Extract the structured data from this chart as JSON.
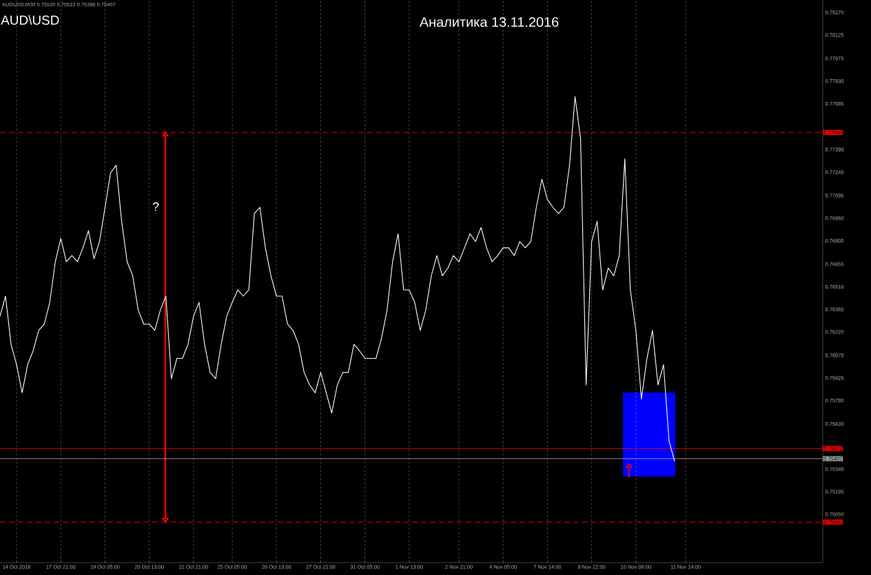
{
  "chart_data": {
    "type": "line",
    "title": "Аналитика 13.11.2016",
    "subtitle": "AUD\\USD",
    "annotations": [
      "AUDUSD,M30  0.75520 0.75522 0.75396 0.75407",
      "?"
    ],
    "categories": [
      null,
      null,
      null,
      "14 Oct 2016",
      null,
      null,
      null,
      null,
      null,
      null,
      null,
      "17 Oct 21:00",
      null,
      null,
      null,
      null,
      null,
      null,
      null,
      "19 Oct 05:00",
      null,
      null,
      null,
      null,
      null,
      null,
      null,
      "20 Oct 13:00",
      null,
      null,
      null,
      null,
      null,
      null,
      null,
      "21 Oct 21:00",
      null,
      null,
      null,
      null,
      null,
      null,
      "25 Oct 05:00",
      null,
      null,
      null,
      null,
      null,
      null,
      null,
      "26 Oct 13:00",
      null,
      null,
      null,
      null,
      null,
      null,
      null,
      "27 Oct 21:00",
      null,
      null,
      null,
      null,
      null,
      null,
      null,
      "31 Oct 05:00",
      null,
      null,
      null,
      null,
      null,
      null,
      null,
      "1 Nov 13:00",
      null,
      null,
      null,
      null,
      null,
      null,
      null,
      null,
      "2 Nov 21:00",
      null,
      null,
      null,
      null,
      null,
      null,
      null,
      "4 Nov 05:00",
      null,
      null,
      null,
      null,
      null,
      null,
      null,
      "7 Nov 14:00",
      null,
      null,
      null,
      null,
      null,
      null,
      null,
      "8 Nov 22:00",
      null,
      null,
      null,
      null,
      null,
      null,
      null,
      "10 Nov 06:00",
      null,
      null,
      null,
      null,
      null,
      null,
      null,
      null,
      "11 Nov 14:00"
    ],
    "series": [
      {
        "color": "#ffffff",
        "values": [
          0.7632,
          0.7645,
          0.7614,
          0.7601,
          0.7583,
          0.7601,
          0.761,
          0.7623,
          0.7627,
          0.7641,
          0.7667,
          0.7682,
          0.7667,
          0.7671,
          0.7667,
          0.7676,
          0.7687,
          0.7669,
          0.768,
          0.7702,
          0.7724,
          0.7729,
          0.7693,
          0.7667,
          0.7658,
          0.7636,
          0.7627,
          0.7627,
          0.7623,
          0.7636,
          0.7645,
          0.7592,
          0.7605,
          0.7605,
          0.7614,
          0.7632,
          0.7641,
          0.7614,
          0.7596,
          0.7592,
          0.7614,
          0.7632,
          0.7641,
          0.7649,
          0.7645,
          0.7649,
          0.7698,
          0.7702,
          0.7676,
          0.7658,
          0.7645,
          0.7645,
          0.7627,
          0.7623,
          0.7614,
          0.7596,
          0.7588,
          0.7583,
          0.7596,
          0.7583,
          0.757,
          0.7588,
          0.7596,
          0.7596,
          0.7614,
          0.761,
          0.7605,
          0.7605,
          0.7605,
          0.7618,
          0.7636,
          0.7667,
          0.7685,
          0.7649,
          0.7649,
          0.7641,
          0.7623,
          0.7636,
          0.7658,
          0.7671,
          0.7658,
          0.7663,
          0.7671,
          0.7667,
          0.7676,
          0.7685,
          0.768,
          0.7689,
          0.7676,
          0.7667,
          0.7671,
          0.7676,
          0.7676,
          0.7671,
          0.768,
          0.7676,
          0.768,
          0.7702,
          0.772,
          0.7707,
          0.7702,
          0.7698,
          0.7702,
          0.7729,
          0.7773,
          0.7746,
          0.7588,
          0.768,
          0.7693,
          0.7649,
          0.7663,
          0.7658,
          0.7671,
          0.7733,
          0.7649,
          0.7623,
          0.7579,
          0.7605,
          0.7623,
          0.7588,
          0.7601,
          0.7552,
          0.7539,
          null,
          null
        ]
      }
    ],
    "ylim": [
      0.7474,
      0.7835
    ],
    "yticks": [
      {
        "value": 0.7827,
        "label": "0.78270"
      },
      {
        "value": 0.78125,
        "label": "0.78125"
      },
      {
        "value": 0.77975,
        "label": "0.77975"
      },
      {
        "value": 0.7783,
        "label": "0.77830"
      },
      {
        "value": 0.77685,
        "label": "0.77685"
      },
      {
        "value": 0.7739,
        "label": "0.77390"
      },
      {
        "value": 0.77245,
        "label": "0.77245"
      },
      {
        "value": 0.77095,
        "label": "0.77095"
      },
      {
        "value": 0.7695,
        "label": "0.76950"
      },
      {
        "value": 0.76805,
        "label": "0.76805"
      },
      {
        "value": 0.76655,
        "label": "0.76655"
      },
      {
        "value": 0.7651,
        "label": "0.76510"
      },
      {
        "value": 0.76365,
        "label": "0.76365"
      },
      {
        "value": 0.7622,
        "label": "0.76220"
      },
      {
        "value": 0.7607,
        "label": "0.76070"
      },
      {
        "value": 0.75925,
        "label": "0.75925"
      },
      {
        "value": 0.7578,
        "label": "0.75780"
      },
      {
        "value": 0.7563,
        "label": "0.75630"
      },
      {
        "value": 0.7534,
        "label": "0.75340"
      },
      {
        "value": 0.75195,
        "label": "0.75195"
      },
      {
        "value": 0.7505,
        "label": "0.75050"
      }
    ],
    "ref_lines": [
      {
        "axis": "y",
        "value": 0.775,
        "label": "0.77500",
        "color": "#ff0000",
        "line_style": "dashed"
      },
      {
        "axis": "y",
        "value": 0.75472,
        "label": "0.75472",
        "color": "#ff0000",
        "line_style": "solid"
      },
      {
        "axis": "y",
        "value": 0.75407,
        "label": "0.75407",
        "color": "#a0a0a0",
        "line_style": "solid"
      },
      {
        "axis": "y",
        "value": 0.75,
        "label": "0.75000",
        "color": "#ff0000",
        "line_style": "dashed"
      }
    ],
    "grid": "x"
  }
}
